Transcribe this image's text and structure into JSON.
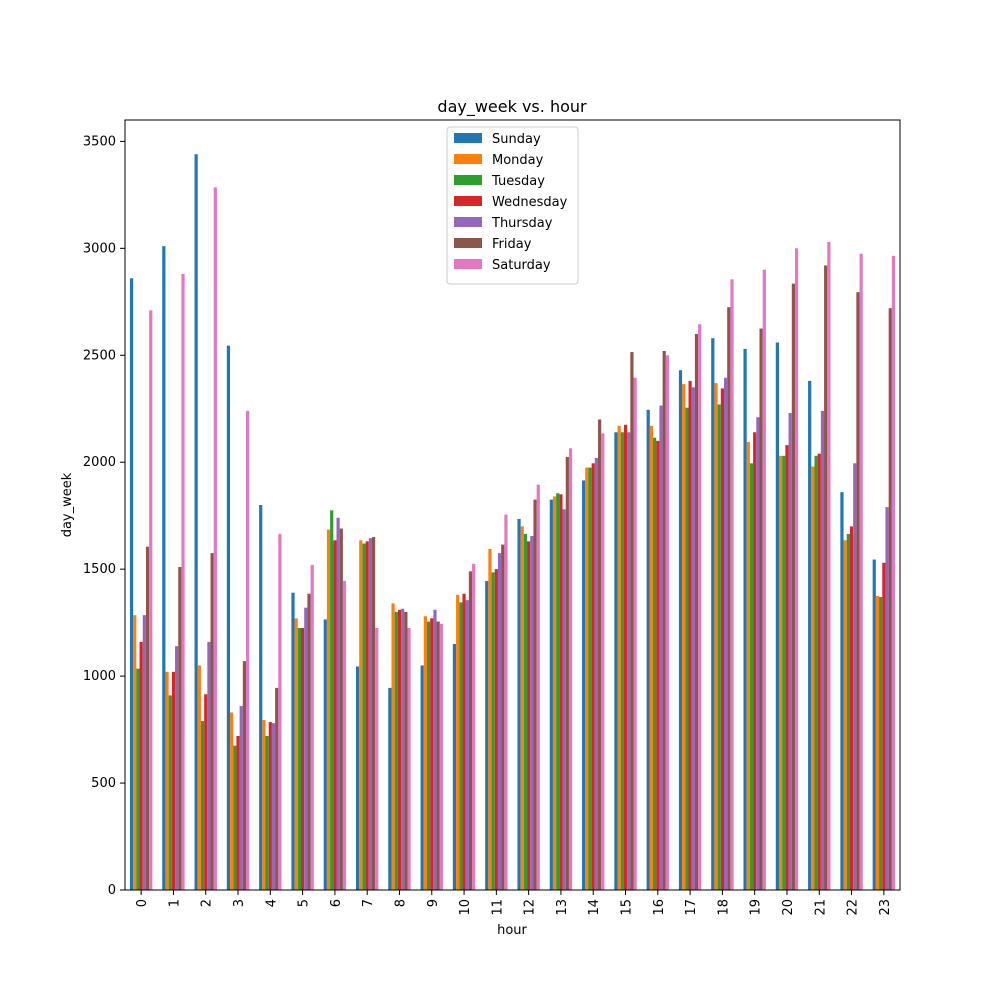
{
  "chart_data": {
    "type": "bar",
    "title": "day_week vs. hour",
    "xlabel": "hour",
    "ylabel": "day_week",
    "ylim": [
      0,
      3600
    ],
    "yticks": [
      0,
      500,
      1000,
      1500,
      2000,
      2500,
      3000,
      3500
    ],
    "grid": false,
    "legend_position": "top-center",
    "categories": [
      "0",
      "1",
      "2",
      "3",
      "4",
      "5",
      "6",
      "7",
      "8",
      "9",
      "10",
      "11",
      "12",
      "13",
      "14",
      "15",
      "16",
      "17",
      "18",
      "19",
      "20",
      "21",
      "22",
      "23"
    ],
    "series": [
      {
        "name": "Sunday",
        "color": "#1f77b4",
        "values": [
          2860,
          3010,
          3440,
          2545,
          1800,
          1390,
          1265,
          1045,
          945,
          1050,
          1150,
          1445,
          1735,
          1825,
          1915,
          2140,
          2245,
          2430,
          2580,
          2530,
          2560,
          2380,
          1860,
          1545
        ]
      },
      {
        "name": "Monday",
        "color": "#ff7f0e",
        "values": [
          1285,
          1020,
          1050,
          830,
          795,
          1270,
          1685,
          1635,
          1340,
          1280,
          1380,
          1595,
          1700,
          1840,
          1975,
          2170,
          2170,
          2365,
          2370,
          2095,
          2030,
          1980,
          1635,
          1375
        ]
      },
      {
        "name": "Tuesday",
        "color": "#2ca02c",
        "values": [
          1035,
          910,
          790,
          675,
          720,
          1225,
          1775,
          1620,
          1300,
          1255,
          1345,
          1485,
          1665,
          1855,
          1975,
          2140,
          2115,
          2255,
          2270,
          1995,
          2030,
          2030,
          1665,
          1370
        ]
      },
      {
        "name": "Wednesday",
        "color": "#d62728",
        "values": [
          1160,
          1020,
          915,
          720,
          785,
          1225,
          1635,
          1630,
          1310,
          1270,
          1385,
          1500,
          1630,
          1850,
          1995,
          2175,
          2100,
          2380,
          2345,
          2140,
          2080,
          2040,
          1700,
          1530
        ]
      },
      {
        "name": "Thursday",
        "color": "#9467bd",
        "values": [
          1285,
          1140,
          1160,
          860,
          780,
          1320,
          1740,
          1645,
          1315,
          1310,
          1355,
          1575,
          1655,
          1780,
          2020,
          2140,
          2265,
          2350,
          2395,
          2210,
          2230,
          2240,
          1995,
          1790
        ]
      },
      {
        "name": "Friday",
        "color": "#8c564b",
        "values": [
          1605,
          1510,
          1575,
          1070,
          945,
          1385,
          1690,
          1650,
          1300,
          1255,
          1490,
          1615,
          1825,
          2025,
          2200,
          2515,
          2520,
          2600,
          2725,
          2625,
          2835,
          2920,
          2795,
          2720
        ]
      },
      {
        "name": "Saturday",
        "color": "#e377c2",
        "values": [
          2710,
          2880,
          3285,
          2240,
          1665,
          1520,
          1445,
          1225,
          1225,
          1245,
          1525,
          1755,
          1895,
          2065,
          2135,
          2395,
          2500,
          2645,
          2855,
          2900,
          3000,
          3030,
          2975,
          2965
        ]
      }
    ]
  }
}
